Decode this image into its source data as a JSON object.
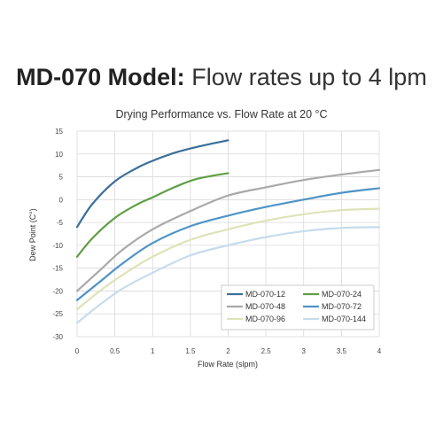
{
  "headline": {
    "bold": "MD-070 Model:",
    "light": "Flow rates up to 4 lpm"
  },
  "chart_data": {
    "type": "line",
    "title": "Drying Performance vs. Flow Rate at 20 °C",
    "xlabel": "Flow Rate (slpm)",
    "ylabel": "Dew Point (C°)",
    "xlim": [
      0,
      4
    ],
    "ylim": [
      -30,
      15
    ],
    "xticks": [
      0,
      0.5,
      1,
      1.5,
      2,
      2.5,
      3,
      3.5,
      4
    ],
    "xtick_labels": [
      "0",
      "0.5",
      "1",
      "1.5",
      "2",
      "2.5",
      "3",
      "3.5",
      "4"
    ],
    "yticks": [
      15,
      10,
      5,
      0,
      -5,
      -10,
      -15,
      -20,
      -25,
      -30
    ],
    "grid": true,
    "legend_position": "bottom-right",
    "series": [
      {
        "name": "MD-070-12",
        "color": "#3b6f99",
        "x": [
          0,
          0.2,
          0.5,
          0.8,
          1,
          1.3,
          1.6,
          2
        ],
        "y": [
          -6,
          -1,
          4,
          7,
          8.5,
          10.3,
          11.6,
          13
        ]
      },
      {
        "name": "MD-070-24",
        "color": "#5f9e45",
        "x": [
          0,
          0.2,
          0.5,
          0.8,
          1,
          1.3,
          1.6,
          2
        ],
        "y": [
          -12.5,
          -8.5,
          -4,
          -1,
          0.5,
          2.8,
          4.6,
          5.8
        ]
      },
      {
        "name": "MD-070-48",
        "color": "#a9a9a9",
        "x": [
          0,
          0.3,
          0.6,
          1,
          1.5,
          2,
          2.5,
          3,
          3.5,
          4
        ],
        "y": [
          -20,
          -15.5,
          -11,
          -6.5,
          -2.5,
          0.9,
          2.7,
          4.3,
          5.5,
          6.5
        ]
      },
      {
        "name": "MD-070-72",
        "color": "#4f93c6",
        "x": [
          0,
          0.3,
          0.6,
          1,
          1.5,
          2,
          2.5,
          3,
          3.5,
          4
        ],
        "y": [
          -22,
          -18,
          -14,
          -9.5,
          -5.8,
          -3.5,
          -1.6,
          0,
          1.5,
          2.5
        ]
      },
      {
        "name": "MD-070-96",
        "color": "#dfe3b8",
        "x": [
          0,
          0.3,
          0.6,
          1,
          1.5,
          2,
          2.5,
          3,
          3.5,
          4
        ],
        "y": [
          -24,
          -20,
          -16.5,
          -12.5,
          -8.8,
          -6.5,
          -4.6,
          -3.2,
          -2.3,
          -2
        ]
      },
      {
        "name": "MD-070-144",
        "color": "#c6dcec",
        "x": [
          0,
          0.3,
          0.6,
          1,
          1.5,
          2,
          2.5,
          3,
          3.5,
          4
        ],
        "y": [
          -27,
          -23,
          -19.5,
          -16,
          -12.2,
          -10,
          -8.2,
          -6.9,
          -6.2,
          -6
        ]
      }
    ]
  }
}
